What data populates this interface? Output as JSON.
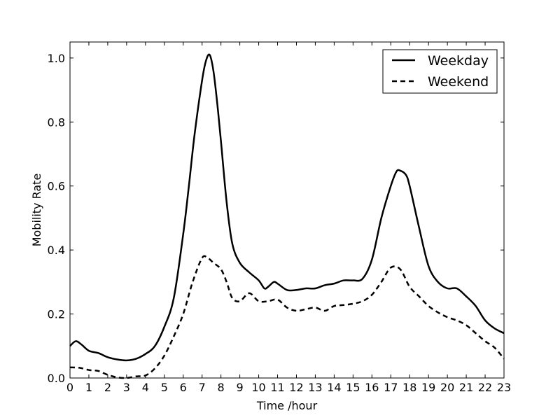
{
  "chart_data": {
    "type": "line",
    "title": "",
    "xlabel": "Time /hour",
    "ylabel": "Mobility Rate",
    "xlim": [
      0,
      23
    ],
    "ylim": [
      0,
      1.05
    ],
    "x_ticks": [
      0,
      1,
      2,
      3,
      4,
      5,
      6,
      7,
      8,
      9,
      10,
      11,
      12,
      13,
      14,
      15,
      16,
      17,
      18,
      19,
      20,
      21,
      22,
      23
    ],
    "y_ticks": [
      0.0,
      0.2,
      0.4,
      0.6,
      0.8,
      1.0
    ],
    "y_tick_labels": [
      "0.0",
      "0.2",
      "0.4",
      "0.6",
      "0.8",
      "1.0"
    ],
    "grid": false,
    "legend_position": "top-right",
    "series": [
      {
        "name": "Weekday",
        "style": "solid",
        "color": "#000000",
        "x": [
          0,
          0.3,
          0.6,
          1,
          1.5,
          2,
          2.5,
          3,
          3.5,
          4,
          4.5,
          5,
          5.5,
          6,
          6.3,
          6.6,
          7,
          7.2,
          7.4,
          7.6,
          7.8,
          8,
          8.3,
          8.6,
          9,
          9.5,
          10,
          10.3,
          10.5,
          10.8,
          11,
          11.5,
          12,
          12.5,
          13,
          13.5,
          14,
          14.5,
          15,
          15.5,
          16,
          16.5,
          17,
          17.3,
          17.5,
          17.8,
          18,
          18.5,
          19,
          19.5,
          20,
          20.5,
          21,
          21.5,
          22,
          22.5,
          23
        ],
        "y": [
          0.1,
          0.115,
          0.105,
          0.085,
          0.078,
          0.065,
          0.058,
          0.055,
          0.06,
          0.075,
          0.1,
          0.16,
          0.25,
          0.45,
          0.6,
          0.76,
          0.93,
          0.99,
          1.01,
          0.96,
          0.86,
          0.74,
          0.55,
          0.42,
          0.36,
          0.33,
          0.305,
          0.28,
          0.285,
          0.3,
          0.295,
          0.275,
          0.275,
          0.28,
          0.28,
          0.29,
          0.295,
          0.305,
          0.305,
          0.31,
          0.37,
          0.5,
          0.6,
          0.645,
          0.648,
          0.635,
          0.6,
          0.47,
          0.35,
          0.3,
          0.28,
          0.28,
          0.255,
          0.225,
          0.18,
          0.155,
          0.14
        ]
      },
      {
        "name": "Weekend",
        "style": "dashed",
        "color": "#000000",
        "x": [
          0,
          0.5,
          1,
          1.5,
          2,
          2.5,
          3,
          3.5,
          4,
          4.5,
          5,
          5.5,
          6,
          6.5,
          7,
          7.3,
          7.6,
          8,
          8.3,
          8.6,
          9,
          9.5,
          10,
          10.5,
          11,
          11.5,
          12,
          12.5,
          13,
          13.5,
          14,
          14.5,
          15,
          15.5,
          16,
          16.5,
          17,
          17.5,
          18,
          18.5,
          19,
          19.5,
          20,
          20.5,
          21,
          21.5,
          22,
          22.5,
          23
        ],
        "y": [
          0.033,
          0.032,
          0.025,
          0.022,
          0.01,
          0.002,
          0.0,
          0.005,
          0.008,
          0.03,
          0.07,
          0.13,
          0.2,
          0.3,
          0.375,
          0.375,
          0.36,
          0.34,
          0.3,
          0.25,
          0.24,
          0.265,
          0.24,
          0.24,
          0.245,
          0.22,
          0.21,
          0.215,
          0.22,
          0.21,
          0.225,
          0.228,
          0.232,
          0.24,
          0.26,
          0.3,
          0.345,
          0.34,
          0.285,
          0.255,
          0.225,
          0.205,
          0.19,
          0.18,
          0.165,
          0.14,
          0.115,
          0.095,
          0.06
        ]
      }
    ]
  }
}
